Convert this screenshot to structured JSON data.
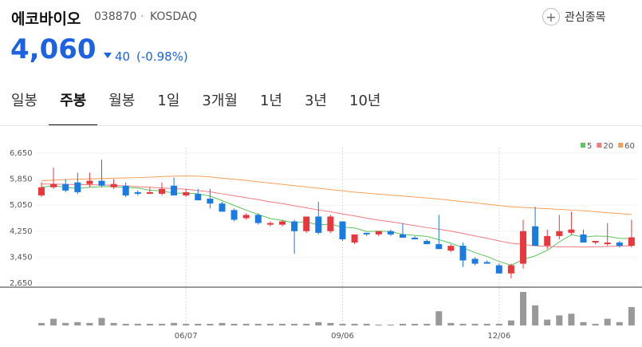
{
  "header": {
    "name": "에코바이오",
    "code": "038870",
    "market": "KOSDAQ",
    "watch_label": "관심종목"
  },
  "price": {
    "current": "4,060",
    "change": 40,
    "change_pct": "(-0.98%)"
  },
  "tabs": [
    "일봉",
    "주봉",
    "월봉",
    "1일",
    "3개월",
    "1년",
    "3년",
    "10년"
  ],
  "active_tab": 1,
  "chart_data": {
    "type": "candlestick",
    "categories": [
      null,
      null,
      null,
      null,
      null,
      null,
      null,
      null,
      null,
      null,
      null,
      null,
      "06/07",
      null,
      null,
      null,
      null,
      null,
      null,
      null,
      null,
      null,
      null,
      null,
      null,
      "09/06",
      null,
      null,
      null,
      null,
      null,
      null,
      null,
      null,
      null,
      null,
      null,
      null,
      "12/06",
      null,
      null,
      null,
      null,
      null,
      null,
      null,
      null,
      null,
      null,
      null
    ],
    "open": [
      5350,
      5600,
      5700,
      5750,
      5700,
      5800,
      5600,
      5650,
      5450,
      5400,
      5400,
      5650,
      5350,
      5400,
      5250,
      5100,
      4900,
      4650,
      4750,
      4450,
      4450,
      4550,
      4250,
      4700,
      4250,
      4550,
      3900,
      4200,
      4150,
      4250,
      4150,
      4050,
      3950,
      3850,
      3650,
      3800,
      3400,
      3300,
      3200,
      2950,
      3250,
      4400,
      3800,
      4100,
      4200,
      4150,
      3900,
      3850,
      3900,
      3800
    ],
    "high": [
      5750,
      6200,
      5850,
      6050,
      6050,
      6450,
      5850,
      5750,
      5500,
      5600,
      5750,
      5900,
      5550,
      5550,
      5550,
      5150,
      4950,
      4800,
      4800,
      4550,
      4600,
      4600,
      4700,
      5150,
      4750,
      4550,
      4150,
      4200,
      4250,
      4300,
      4500,
      4100,
      4000,
      4750,
      3850,
      3900,
      3450,
      3350,
      3250,
      3250,
      4600,
      5000,
      4300,
      4750,
      4850,
      4300,
      3950,
      4500,
      3950,
      4600
    ],
    "low": [
      5300,
      5550,
      5450,
      5400,
      5600,
      5600,
      5550,
      5300,
      5350,
      5400,
      5350,
      5350,
      5300,
      5200,
      4950,
      4850,
      4550,
      4600,
      4450,
      4400,
      4400,
      3550,
      4200,
      4150,
      4200,
      3950,
      3850,
      4100,
      4100,
      4100,
      4050,
      4000,
      3850,
      3700,
      3600,
      3150,
      3200,
      3250,
      2950,
      2800,
      3100,
      3800,
      3700,
      4000,
      4150,
      3900,
      3850,
      3800,
      3750,
      3750
    ],
    "close": [
      5600,
      5700,
      5500,
      5450,
      5800,
      5650,
      5700,
      5350,
      5400,
      5450,
      5550,
      5350,
      5450,
      5200,
      5100,
      4850,
      4600,
      4750,
      4500,
      4500,
      4550,
      4250,
      4700,
      4200,
      4700,
      4000,
      4150,
      4150,
      4250,
      4150,
      4050,
      4000,
      3850,
      3700,
      3800,
      3350,
      3250,
      3250,
      2950,
      3200,
      4250,
      3800,
      4100,
      4250,
      4300,
      3900,
      3950,
      3900,
      3800,
      4060
    ],
    "up_color": "#e8383d",
    "down_color": "#1a7be0",
    "series": [
      {
        "name": "5",
        "color": "#5cc45c",
        "values": [
          5600,
          5650,
          5600,
          5560,
          5600,
          5620,
          5620,
          5590,
          5580,
          5510,
          5490,
          5420,
          5420,
          5400,
          5330,
          5190,
          5040,
          4900,
          4760,
          4640,
          4580,
          4510,
          4540,
          4440,
          4470,
          4370,
          4350,
          4240,
          4250,
          4240,
          4150,
          4120,
          4090,
          3990,
          3880,
          3740,
          3590,
          3470,
          3320,
          3200,
          3380,
          3490,
          3660,
          3920,
          4140,
          4070,
          4100,
          4090,
          4030,
          4020
        ]
      },
      {
        "name": "20",
        "color": "#f07a80",
        "values": [
          5700,
          5700,
          5690,
          5680,
          5680,
          5670,
          5660,
          5640,
          5620,
          5600,
          5580,
          5560,
          5540,
          5500,
          5460,
          5400,
          5340,
          5280,
          5220,
          5150,
          5100,
          5030,
          4970,
          4900,
          4850,
          4780,
          4720,
          4650,
          4590,
          4540,
          4480,
          4420,
          4360,
          4310,
          4250,
          4180,
          4100,
          4030,
          3950,
          3880,
          3840,
          3800,
          3780,
          3770,
          3770,
          3760,
          3770,
          3780,
          3790,
          3800
        ]
      },
      {
        "name": "60",
        "color": "#f5a05a",
        "values": [
          5800,
          5820,
          5840,
          5850,
          5860,
          5870,
          5880,
          5890,
          5900,
          5910,
          5930,
          5940,
          5950,
          5940,
          5920,
          5880,
          5850,
          5810,
          5770,
          5730,
          5690,
          5650,
          5610,
          5570,
          5530,
          5490,
          5450,
          5420,
          5390,
          5360,
          5330,
          5300,
          5270,
          5240,
          5200,
          5160,
          5120,
          5080,
          5040,
          5000,
          4980,
          4960,
          4940,
          4920,
          4900,
          4880,
          4850,
          4820,
          4790,
          4760
        ]
      }
    ],
    "volume": [
      3,
      8,
      3,
      4,
      3,
      9,
      3,
      2,
      2,
      2,
      2,
      3,
      2,
      2,
      2,
      3,
      2,
      2,
      2,
      2,
      2,
      2,
      2,
      4,
      3,
      2,
      2,
      2,
      1,
      1,
      2,
      2,
      2,
      17,
      3,
      2,
      2,
      2,
      2,
      6,
      40,
      24,
      7,
      12,
      14,
      4,
      2,
      8,
      4,
      22
    ],
    "volume_color": "#999999",
    "ylim": [
      2650,
      6650
    ],
    "yticks": [
      {
        "value": 6650,
        "label": "6,650"
      },
      {
        "value": 5850,
        "label": "5,850"
      },
      {
        "value": 5050,
        "label": "5,050"
      },
      {
        "value": 4250,
        "label": "4,250"
      },
      {
        "value": 3450,
        "label": "3,450"
      },
      {
        "value": 2650,
        "label": "2,650"
      }
    ]
  }
}
